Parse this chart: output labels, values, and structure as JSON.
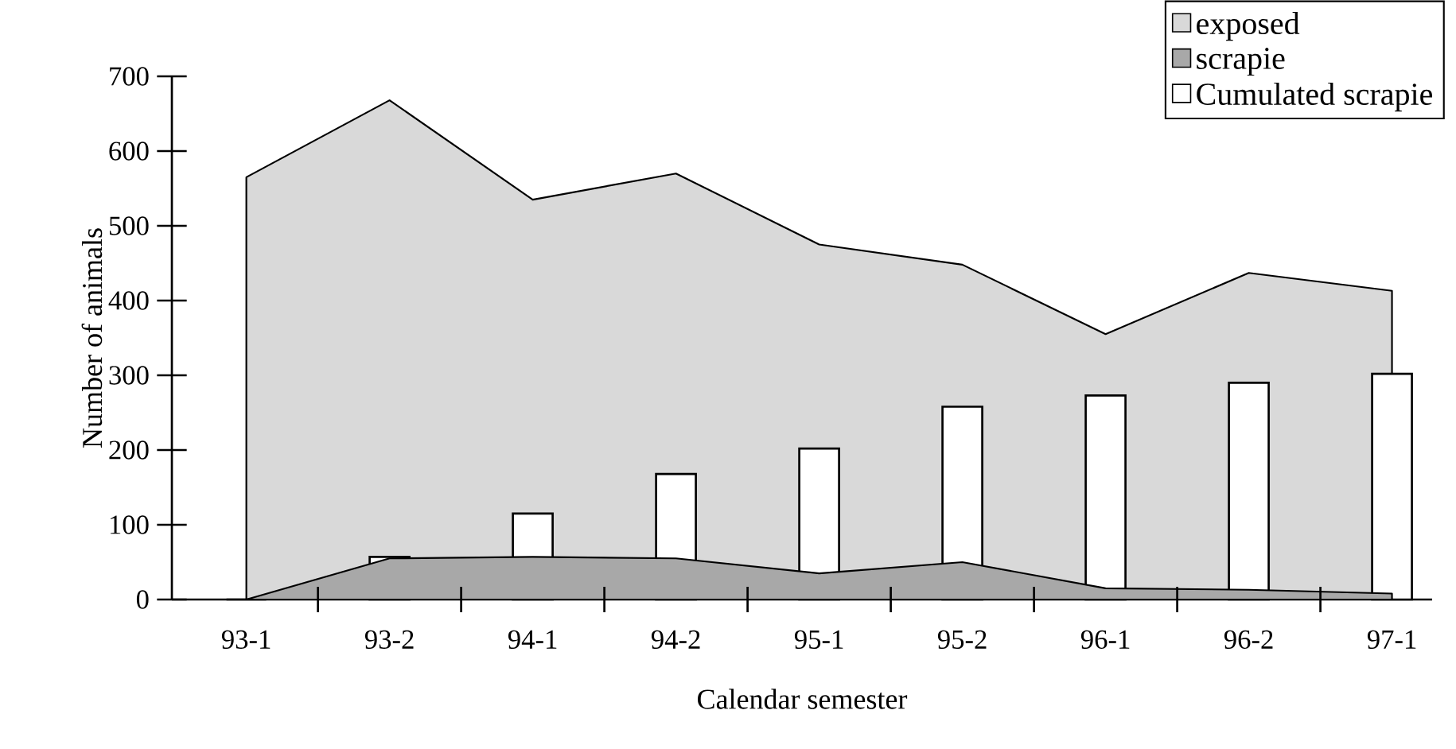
{
  "chart_data": {
    "type": "area",
    "xlabel": "Calendar semester",
    "ylabel": "Number of animals",
    "categories": [
      "93-1",
      "93-2",
      "94-1",
      "94-2",
      "95-1",
      "95-2",
      "96-1",
      "96-2",
      "97-1"
    ],
    "ylim": [
      0,
      700
    ],
    "yticks": [
      0,
      100,
      200,
      300,
      400,
      500,
      600,
      700
    ],
    "legend": "top right",
    "series": [
      {
        "name": "exposed",
        "type": "area",
        "color": "#d9d9d9",
        "values": [
          565,
          668,
          535,
          570,
          475,
          448,
          355,
          437,
          413
        ]
      },
      {
        "name": "scrapie",
        "type": "area",
        "color": "#a8a8a8",
        "values": [
          0,
          55,
          57,
          55,
          35,
          50,
          15,
          13,
          8
        ]
      },
      {
        "name": "Cumulated scrapie",
        "type": "bar",
        "color": "#ffffff",
        "values": [
          0,
          57,
          115,
          168,
          202,
          258,
          273,
          290,
          302
        ]
      }
    ]
  }
}
